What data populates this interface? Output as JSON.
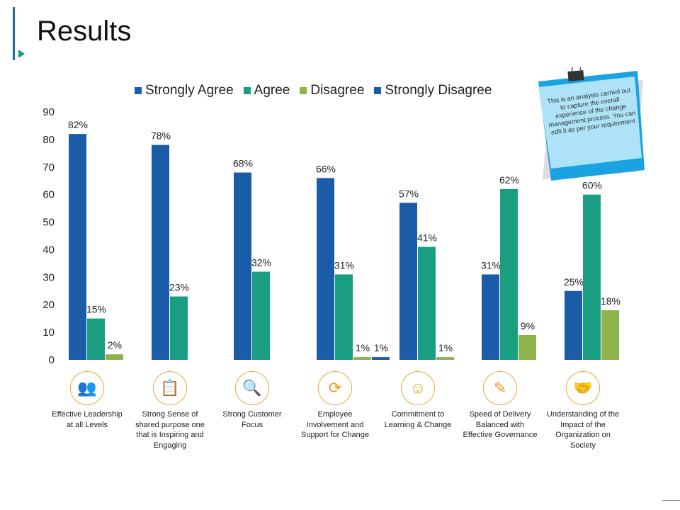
{
  "title": "Results",
  "note": "This is an analysis carried out to capture the overall experience of the change management process. You can edit it as per your requirement",
  "chart_data": {
    "type": "bar",
    "categories": [
      "Effective Leadership at all Levels",
      "Strong Sense of shared purpose one that is Inspiring and Engaging",
      "Strong Customer Focus",
      "Employee Involvement and Support for Change",
      "Commitment to Learning & Change",
      "Speed of Delivery Balanced with Effective Governance",
      "Understanding of the Impact of the Organization on Society"
    ],
    "series": [
      {
        "name": "Strongly Agree",
        "color": "#1a5ca8",
        "values": [
          82,
          78,
          68,
          66,
          57,
          31,
          25
        ]
      },
      {
        "name": "Agree",
        "color": "#1a9e82",
        "values": [
          15,
          23,
          32,
          31,
          41,
          62,
          60
        ]
      },
      {
        "name": "Disagree",
        "color": "#8db34a",
        "values": [
          2,
          0,
          0,
          1,
          1,
          9,
          18
        ]
      },
      {
        "name": "Strongly Disagree",
        "color": "#1a5ca8",
        "values": [
          0,
          0,
          0,
          1,
          0,
          0,
          0
        ]
      }
    ],
    "ylim": [
      0,
      90
    ],
    "yticks": [
      0,
      10,
      20,
      30,
      40,
      50,
      60,
      70,
      80,
      90
    ],
    "label_suffix": "%",
    "legend": "top",
    "grid": false
  },
  "icons": [
    "people-group-icon",
    "clipboard-checklist-icon",
    "magnifier-people-icon",
    "cycle-person-icon",
    "head-gear-icon",
    "document-pen-icon",
    "handshake-icon"
  ]
}
